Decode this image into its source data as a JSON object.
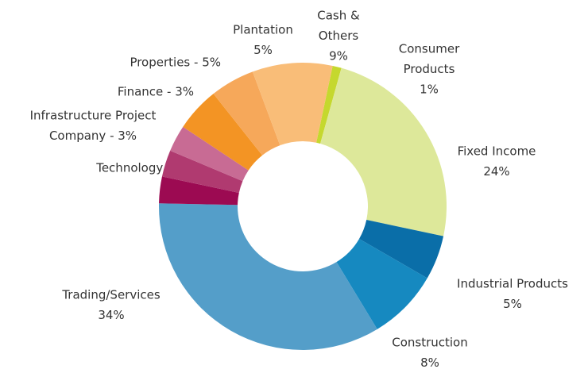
{
  "chart_data": {
    "type": "donut",
    "labels": [
      [
        "Consumer",
        "Products",
        "1%"
      ],
      [
        "Fixed Income",
        "24%"
      ],
      [
        "Industrial Products",
        "5%"
      ],
      [
        "Construction",
        "8%"
      ],
      [
        "Trading/Services",
        "34%"
      ],
      [
        "Technology - 3%"
      ],
      [
        "Infrastructure Project",
        "Company - 3%"
      ],
      [
        "Finance - 3%"
      ],
      [
        "Properties - 5%"
      ],
      [
        "Plantation",
        "5%"
      ],
      [
        "Cash &",
        "Others",
        "9%"
      ]
    ],
    "values": [
      1,
      24,
      5,
      8,
      34,
      3,
      3,
      3,
      5,
      5,
      9
    ],
    "colors": [
      "#c5d82e",
      "#dde89a",
      "#0a6ea8",
      "#1689c0",
      "#549ec9",
      "#9c0a52",
      "#b03a70",
      "#c86b94",
      "#f39424",
      "#f6a85a",
      "#f9bd78"
    ]
  }
}
